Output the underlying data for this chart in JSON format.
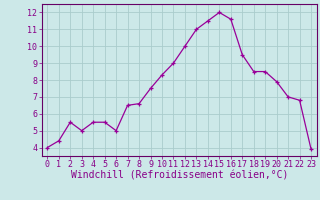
{
  "x": [
    0,
    1,
    2,
    3,
    4,
    5,
    6,
    7,
    8,
    9,
    10,
    11,
    12,
    13,
    14,
    15,
    16,
    17,
    18,
    19,
    20,
    21,
    22,
    23
  ],
  "y": [
    4.0,
    4.4,
    5.5,
    5.0,
    5.5,
    5.5,
    5.0,
    6.5,
    6.6,
    7.5,
    8.3,
    9.0,
    10.0,
    11.0,
    11.5,
    12.0,
    11.6,
    9.5,
    8.5,
    8.5,
    7.9,
    7.0,
    6.8,
    3.9
  ],
  "line_color": "#990099",
  "marker": "+",
  "bg_color": "#cce8e8",
  "grid_color": "#aacccc",
  "xlabel": "Windchill (Refroidissement éolien,°C)",
  "xlim": [
    -0.5,
    23.5
  ],
  "ylim": [
    3.5,
    12.5
  ],
  "yticks": [
    4,
    5,
    6,
    7,
    8,
    9,
    10,
    11,
    12
  ],
  "xticks": [
    0,
    1,
    2,
    3,
    4,
    5,
    6,
    7,
    8,
    9,
    10,
    11,
    12,
    13,
    14,
    15,
    16,
    17,
    18,
    19,
    20,
    21,
    22,
    23
  ],
  "tick_label_fontsize": 6,
  "xlabel_fontsize": 7,
  "label_color": "#880088",
  "tick_color": "#880088",
  "axis_color": "#660066",
  "spine_color": "#660066"
}
